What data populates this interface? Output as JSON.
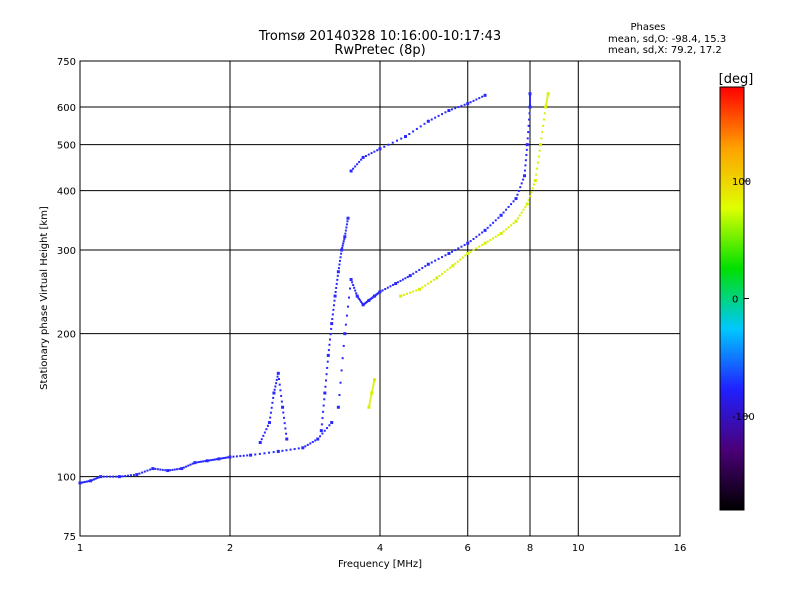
{
  "chart_data": {
    "type": "scatter",
    "title": "Tromsø 20140328 10:16:00-10:17:43",
    "subtitle": "RwPretec (8p)",
    "phases_box": {
      "heading": "Phases",
      "line_o": "mean, sd,O: -98.4, 15.3",
      "line_x": "mean, sd,X:  79.2, 17.2"
    },
    "xlabel": "Frequency [MHz]",
    "ylabel": "Stationary phase Virtual Height [km]",
    "x_scale": "log",
    "y_scale": "log",
    "xlim": [
      1,
      16
    ],
    "ylim": [
      75,
      750
    ],
    "x_ticks": [
      {
        "value": 1,
        "label": "1"
      },
      {
        "value": 2,
        "label": "2"
      },
      {
        "value": 4,
        "label": "4"
      },
      {
        "value": 6,
        "label": "6"
      },
      {
        "value": 8,
        "label": "8"
      },
      {
        "value": 10,
        "label": "10"
      },
      {
        "value": 16,
        "label": "16"
      }
    ],
    "y_ticks": [
      {
        "value": 75,
        "label": "75"
      },
      {
        "value": 100,
        "label": "100"
      },
      {
        "value": 200,
        "label": "200"
      },
      {
        "value": 300,
        "label": "300"
      },
      {
        "value": 400,
        "label": "400"
      },
      {
        "value": 500,
        "label": "500"
      },
      {
        "value": 600,
        "label": "600"
      },
      {
        "value": 750,
        "label": "750"
      }
    ],
    "grid": true,
    "colorbar": {
      "label": "[deg]",
      "range": [
        -180,
        180
      ],
      "ticks": [
        {
          "value": 100,
          "label": "100"
        },
        {
          "value": 0,
          "label": "0"
        },
        {
          "value": -100,
          "label": "-100"
        }
      ],
      "stops": [
        "#000000",
        "#4a0078",
        "#2020ff",
        "#00c8ff",
        "#00e000",
        "#e0ff00",
        "#ffa000",
        "#ff0000"
      ]
    },
    "traces": [
      {
        "phase": -100,
        "color": "#2828ff",
        "points": [
          [
            1.0,
            97
          ],
          [
            1.05,
            98
          ],
          [
            1.1,
            100
          ],
          [
            1.2,
            100
          ],
          [
            1.3,
            101
          ],
          [
            1.4,
            104
          ],
          [
            1.5,
            103
          ],
          [
            1.6,
            104
          ],
          [
            1.7,
            107
          ],
          [
            1.8,
            108
          ],
          [
            1.9,
            109
          ],
          [
            2.0,
            110
          ],
          [
            2.2,
            111
          ],
          [
            2.5,
            113
          ],
          [
            2.8,
            115
          ],
          [
            3.0,
            120
          ],
          [
            3.2,
            130
          ]
        ]
      },
      {
        "phase": -100,
        "color": "#2828ff",
        "points": [
          [
            2.3,
            118
          ],
          [
            2.4,
            130
          ],
          [
            2.45,
            150
          ],
          [
            2.5,
            165
          ],
          [
            2.55,
            140
          ],
          [
            2.6,
            120
          ]
        ]
      },
      {
        "phase": -100,
        "color": "#2828ff",
        "points": [
          [
            3.05,
            125
          ],
          [
            3.1,
            150
          ],
          [
            3.15,
            180
          ],
          [
            3.2,
            210
          ],
          [
            3.25,
            240
          ],
          [
            3.3,
            270
          ],
          [
            3.35,
            300
          ],
          [
            3.4,
            320
          ],
          [
            3.45,
            350
          ]
        ]
      },
      {
        "phase": -100,
        "color": "#2828ff",
        "points": [
          [
            3.3,
            140
          ],
          [
            3.4,
            200
          ],
          [
            3.5,
            260
          ],
          [
            3.6,
            240
          ],
          [
            3.7,
            230
          ],
          [
            3.8,
            235
          ],
          [
            3.9,
            240
          ],
          [
            4.0,
            245
          ],
          [
            4.3,
            255
          ],
          [
            4.6,
            265
          ],
          [
            5.0,
            280
          ],
          [
            5.5,
            295
          ],
          [
            6.0,
            310
          ],
          [
            6.5,
            330
          ],
          [
            7.0,
            355
          ],
          [
            7.5,
            385
          ],
          [
            7.8,
            430
          ],
          [
            7.9,
            500
          ],
          [
            8.0,
            600
          ],
          [
            8.0,
            640
          ]
        ]
      },
      {
        "phase": -100,
        "color": "#2828ff",
        "points": [
          [
            3.5,
            440
          ],
          [
            3.7,
            470
          ],
          [
            4.0,
            490
          ],
          [
            4.5,
            520
          ],
          [
            5.0,
            560
          ],
          [
            5.5,
            590
          ],
          [
            6.0,
            610
          ],
          [
            6.5,
            635
          ]
        ]
      },
      {
        "phase": 100,
        "color": "#d8f000",
        "points": [
          [
            4.4,
            240
          ],
          [
            4.8,
            248
          ],
          [
            5.2,
            262
          ],
          [
            5.6,
            278
          ],
          [
            6.0,
            295
          ],
          [
            6.5,
            310
          ],
          [
            7.0,
            325
          ],
          [
            7.5,
            345
          ],
          [
            7.9,
            375
          ],
          [
            8.2,
            420
          ],
          [
            8.4,
            500
          ],
          [
            8.6,
            600
          ],
          [
            8.7,
            640
          ]
        ]
      },
      {
        "phase": 100,
        "color": "#d8f000",
        "points": [
          [
            3.8,
            140
          ],
          [
            3.85,
            150
          ],
          [
            3.9,
            160
          ]
        ]
      }
    ]
  }
}
